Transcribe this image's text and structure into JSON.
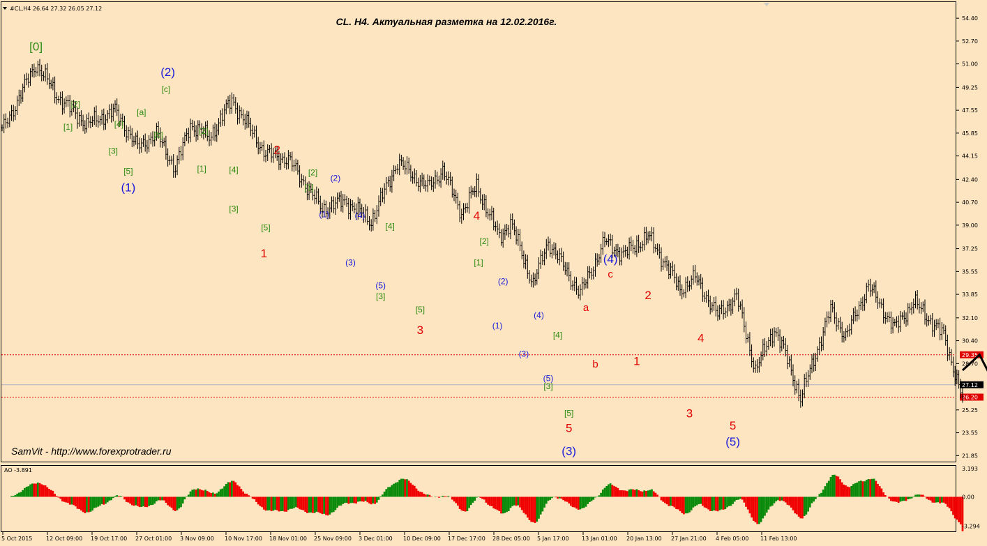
{
  "header": {
    "symbol_info": "#CL,H4  26.64 27.32 26.05 27.12",
    "title": "CL. H4. Актуальная разметка на 12.02.2016г.",
    "author_note": "SamVit - http://www.forexprotrader.ru"
  },
  "colors": {
    "background": "#fde5c2",
    "bars": "#000000",
    "wave_green": "#2e8b10",
    "wave_blue": "#1a1adc",
    "wave_red": "#e00000",
    "ao_up": "#0a8a0a",
    "ao_down": "#f00000",
    "level_line": "#e00000",
    "price_line": "#b0b0c8"
  },
  "chart_data": {
    "type": "bar",
    "subtype": "ohlc",
    "timeframe": "H4",
    "price_range": [
      21.4,
      55.6
    ],
    "price_ticks": [
      "54.40",
      "52.70",
      "51.00",
      "49.25",
      "47.55",
      "45.85",
      "44.15",
      "42.40",
      "40.70",
      "39.00",
      "37.25",
      "35.55",
      "33.85",
      "32.10",
      "30.40",
      "28.70",
      "25.25",
      "23.55",
      "21.85"
    ],
    "x_ticks": [
      "5 Oct 2015",
      "12 Oct 09:00",
      "19 Oct 17:00",
      "27 Oct 01:00",
      "3 Nov 09:00",
      "10 Nov 17:00",
      "18 Nov 01:00",
      "25 Nov 09:00",
      "3 Dec 01:00",
      "10 Dec 09:00",
      "17 Dec 17:00",
      "28 Dec 05:00",
      "5 Jan 17:00",
      "13 Jan 01:00",
      "20 Jan 13:00",
      "27 Jan 21:00",
      "4 Feb 05:00",
      "11 Feb 13:00"
    ],
    "price_path": [
      [
        0,
        46.0
      ],
      [
        18,
        51.0
      ],
      [
        30,
        48.5
      ],
      [
        45,
        46.5
      ],
      [
        60,
        47.5
      ],
      [
        72,
        44.8
      ],
      [
        82,
        45.8
      ],
      [
        92,
        43.2
      ],
      [
        100,
        46.5
      ],
      [
        110,
        45.5
      ],
      [
        122,
        48.3
      ],
      [
        140,
        44.3
      ],
      [
        152,
        43.9
      ],
      [
        170,
        40.2
      ],
      [
        182,
        40.8
      ],
      [
        196,
        39.3
      ],
      [
        210,
        43.7
      ],
      [
        226,
        41.8
      ],
      [
        234,
        43.1
      ],
      [
        244,
        39.9
      ],
      [
        252,
        41.9
      ],
      [
        264,
        38.1
      ],
      [
        270,
        39.2
      ],
      [
        282,
        34.6
      ],
      [
        290,
        37.8
      ],
      [
        307,
        33.9
      ],
      [
        320,
        37.8
      ],
      [
        330,
        36.8
      ],
      [
        343,
        38.2
      ],
      [
        352,
        36.2
      ],
      [
        360,
        34.2
      ],
      [
        368,
        35.1
      ],
      [
        380,
        32.3
      ],
      [
        390,
        33.7
      ],
      [
        400,
        28.2
      ],
      [
        410,
        31.3
      ],
      [
        416,
        29.4
      ],
      [
        424,
        26.1
      ],
      [
        440,
        32.7
      ],
      [
        448,
        30.7
      ],
      [
        460,
        34.5
      ],
      [
        474,
        31.3
      ],
      [
        484,
        33.3
      ],
      [
        500,
        30.8
      ],
      [
        510,
        26.1
      ]
    ],
    "current_price": "27.12",
    "levels": [
      {
        "label": "29.35",
        "value": 29.35
      },
      {
        "label": "26.20",
        "value": 26.2
      }
    ],
    "forecast": [
      [
        510,
        28.2
      ],
      [
        519,
        29.35
      ],
      [
        535,
        25.0
      ],
      [
        566,
        48.6
      ]
    ],
    "wave_labels": [
      {
        "text": "[0]",
        "color": "green",
        "i": 18,
        "price": 52.0,
        "size": 17
      },
      {
        "text": "[1]",
        "color": "green",
        "i": 35,
        "price": 46.1,
        "size": 12
      },
      {
        "text": "[2]",
        "color": "green",
        "i": 39,
        "price": 47.8,
        "size": 12
      },
      {
        "text": "[3]",
        "color": "green",
        "i": 59,
        "price": 44.3,
        "size": 12
      },
      {
        "text": "[4]",
        "color": "green",
        "i": 62,
        "price": 46.3,
        "size": 12
      },
      {
        "text": "[5]",
        "color": "green",
        "i": 67,
        "price": 42.8,
        "size": 12
      },
      {
        "text": "(1)",
        "color": "blue",
        "i": 67,
        "price": 41.5,
        "size": 17
      },
      {
        "text": "[a]",
        "color": "green",
        "i": 74,
        "price": 47.2,
        "size": 12
      },
      {
        "text": "[b]",
        "color": "green",
        "i": 83,
        "price": 45.5,
        "size": 12
      },
      {
        "text": "[c]",
        "color": "green",
        "i": 87,
        "price": 48.9,
        "size": 12
      },
      {
        "text": "(2)",
        "color": "blue",
        "i": 88,
        "price": 50.1,
        "size": 17
      },
      {
        "text": "[2]",
        "color": "green",
        "i": 107,
        "price": 45.8,
        "size": 12
      },
      {
        "text": "[1]",
        "color": "green",
        "i": 106,
        "price": 43.0,
        "size": 12
      },
      {
        "text": "[4]",
        "color": "green",
        "i": 123,
        "price": 42.9,
        "size": 12
      },
      {
        "text": "[3]",
        "color": "green",
        "i": 123,
        "price": 40.0,
        "size": 12
      },
      {
        "text": "2",
        "color": "red",
        "i": 146,
        "price": 44.3,
        "size": 17
      },
      {
        "text": "[5]",
        "color": "green",
        "i": 140,
        "price": 38.6,
        "size": 12
      },
      {
        "text": "1",
        "color": "red",
        "i": 139,
        "price": 36.6,
        "size": 17
      },
      {
        "text": "[2]",
        "color": "green",
        "i": 165,
        "price": 42.7,
        "size": 12
      },
      {
        "text": "[1]",
        "color": "green",
        "i": 163,
        "price": 41.6,
        "size": 12
      },
      {
        "text": "(2)",
        "color": "blue",
        "i": 177,
        "price": 42.3,
        "size": 12
      },
      {
        "text": "(1)",
        "color": "blue",
        "i": 171,
        "price": 39.6,
        "size": 12
      },
      {
        "text": "(4)",
        "color": "blue",
        "i": 190,
        "price": 39.5,
        "size": 12
      },
      {
        "text": "[4]",
        "color": "green",
        "i": 206,
        "price": 38.7,
        "size": 12
      },
      {
        "text": "(3)",
        "color": "blue",
        "i": 185,
        "price": 36.0,
        "size": 12
      },
      {
        "text": "(5)",
        "color": "blue",
        "i": 201,
        "price": 34.3,
        "size": 12
      },
      {
        "text": "[3]",
        "color": "green",
        "i": 201,
        "price": 33.5,
        "size": 12
      },
      {
        "text": "[5]",
        "color": "green",
        "i": 222,
        "price": 32.5,
        "size": 12
      },
      {
        "text": "3",
        "color": "red",
        "i": 222,
        "price": 30.9,
        "size": 17
      },
      {
        "text": "4",
        "color": "red",
        "i": 252,
        "price": 39.4,
        "size": 17
      },
      {
        "text": "[2]",
        "color": "green",
        "i": 256,
        "price": 37.6,
        "size": 12
      },
      {
        "text": "[1]",
        "color": "green",
        "i": 253,
        "price": 36.0,
        "size": 12
      },
      {
        "text": "(2)",
        "color": "blue",
        "i": 266,
        "price": 34.6,
        "size": 12
      },
      {
        "text": "(1)",
        "color": "blue",
        "i": 263,
        "price": 31.3,
        "size": 12
      },
      {
        "text": "(4)",
        "color": "blue",
        "i": 285,
        "price": 32.1,
        "size": 12
      },
      {
        "text": "[4]",
        "color": "green",
        "i": 295,
        "price": 30.6,
        "size": 12
      },
      {
        "text": "(3)",
        "color": "blue",
        "i": 277,
        "price": 29.2,
        "size": 12
      },
      {
        "text": "(5)",
        "color": "blue",
        "i": 290,
        "price": 27.4,
        "size": 12
      },
      {
        "text": "[3]",
        "color": "green",
        "i": 290,
        "price": 26.8,
        "size": 12
      },
      {
        "text": "[5]",
        "color": "green",
        "i": 301,
        "price": 24.8,
        "size": 12
      },
      {
        "text": "5",
        "color": "red",
        "i": 301,
        "price": 23.6,
        "size": 17
      },
      {
        "text": "(3)",
        "color": "blue",
        "i": 301,
        "price": 21.9,
        "size": 17
      },
      {
        "text": "a",
        "color": "red",
        "i": 310,
        "price": 32.6,
        "size": 15
      },
      {
        "text": "b",
        "color": "red",
        "i": 315,
        "price": 28.4,
        "size": 15
      },
      {
        "text": "c",
        "color": "red",
        "i": 323,
        "price": 35.1,
        "size": 15
      },
      {
        "text": "(4)",
        "color": "blue",
        "i": 323,
        "price": 36.2,
        "size": 17
      },
      {
        "text": "2",
        "color": "red",
        "i": 343,
        "price": 33.5,
        "size": 17
      },
      {
        "text": "1",
        "color": "red",
        "i": 337,
        "price": 28.6,
        "size": 17
      },
      {
        "text": "4",
        "color": "red",
        "i": 371,
        "price": 30.3,
        "size": 17
      },
      {
        "text": "3",
        "color": "red",
        "i": 365,
        "price": 24.7,
        "size": 17
      },
      {
        "text": "5",
        "color": "red",
        "i": 388,
        "price": 23.8,
        "size": 17
      },
      {
        "text": "(5)",
        "color": "blue",
        "i": 388,
        "price": 22.6,
        "size": 17
      }
    ],
    "indicator": {
      "name": "AO",
      "label": "AO -3.891",
      "range": [
        -3.9,
        3.5
      ],
      "ticks": [
        "3.193",
        "0.00",
        "-3.294"
      ],
      "current_value": -3.891
    }
  }
}
